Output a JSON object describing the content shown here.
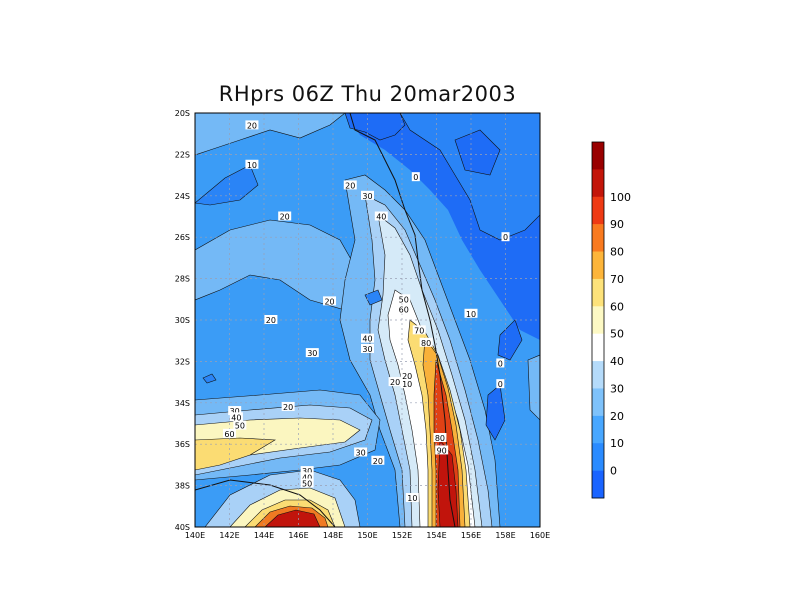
{
  "title": "RHprs 06Z Thu 20mar2003",
  "map": {
    "lat_labels": [
      "20S",
      "22S",
      "24S",
      "26S",
      "28S",
      "30S",
      "32S",
      "34S",
      "36S",
      "38S",
      "40S"
    ],
    "lon_labels": [
      "140E",
      "142E",
      "144E",
      "146E",
      "148E",
      "150E",
      "152E",
      "154E",
      "156E",
      "158E",
      "160E"
    ],
    "lat_range": [
      -40,
      -20
    ],
    "lon_range": [
      140,
      160
    ],
    "gridlines": true,
    "contour_labels": [
      {
        "text": "20",
        "lon": 143.3,
        "lat": -20.6
      },
      {
        "text": "10",
        "lon": 143.3,
        "lat": -22.5
      },
      {
        "text": "0",
        "lon": 152.8,
        "lat": -23.1
      },
      {
        "text": "20",
        "lon": 149.0,
        "lat": -23.5
      },
      {
        "text": "30",
        "lon": 150.0,
        "lat": -24.0
      },
      {
        "text": "40",
        "lon": 150.8,
        "lat": -25.0
      },
      {
        "text": "20",
        "lon": 145.2,
        "lat": -25.0
      },
      {
        "text": "0",
        "lon": 158.0,
        "lat": -26.0
      },
      {
        "text": "20",
        "lon": 147.8,
        "lat": -29.1
      },
      {
        "text": "50",
        "lon": 152.1,
        "lat": -29.0
      },
      {
        "text": "60",
        "lon": 152.1,
        "lat": -29.5
      },
      {
        "text": "10",
        "lon": 156.0,
        "lat": -29.7
      },
      {
        "text": "20",
        "lon": 144.4,
        "lat": -30.0
      },
      {
        "text": "70",
        "lon": 153.0,
        "lat": -30.5
      },
      {
        "text": "80",
        "lon": 153.4,
        "lat": -31.1
      },
      {
        "text": "40",
        "lon": 150.0,
        "lat": -30.9
      },
      {
        "text": "30",
        "lon": 150.0,
        "lat": -31.4
      },
      {
        "text": "30",
        "lon": 146.8,
        "lat": -31.6
      },
      {
        "text": "0",
        "lon": 157.7,
        "lat": -32.1
      },
      {
        "text": "20",
        "lon": 152.3,
        "lat": -32.7
      },
      {
        "text": "10",
        "lon": 152.3,
        "lat": -33.1
      },
      {
        "text": "20",
        "lon": 151.6,
        "lat": -33.0
      },
      {
        "text": "0",
        "lon": 157.7,
        "lat": -33.1
      },
      {
        "text": "20",
        "lon": 145.4,
        "lat": -34.2
      },
      {
        "text": "30",
        "lon": 142.3,
        "lat": -34.4
      },
      {
        "text": "40",
        "lon": 142.4,
        "lat": -34.7
      },
      {
        "text": "50",
        "lon": 142.6,
        "lat": -35.1
      },
      {
        "text": "60",
        "lon": 142.0,
        "lat": -35.5
      },
      {
        "text": "80",
        "lon": 154.2,
        "lat": -35.7
      },
      {
        "text": "90",
        "lon": 154.3,
        "lat": -36.3
      },
      {
        "text": "30",
        "lon": 149.6,
        "lat": -36.4
      },
      {
        "text": "20",
        "lon": 150.6,
        "lat": -36.8
      },
      {
        "text": "30",
        "lon": 146.5,
        "lat": -37.3
      },
      {
        "text": "40",
        "lon": 146.5,
        "lat": -37.6
      },
      {
        "text": "50",
        "lon": 146.5,
        "lat": -37.9
      },
      {
        "text": "10",
        "lon": 152.6,
        "lat": -38.6
      }
    ]
  },
  "colorbar": {
    "labels": [
      "0",
      "10",
      "20",
      "30",
      "40",
      "50",
      "60",
      "70",
      "80",
      "90",
      "100"
    ],
    "colors": [
      "#1a64ff",
      "#2a8bff",
      "#48a7ff",
      "#7ec2fb",
      "#b5dbfa",
      "#ffffff",
      "#fdf9c4",
      "#fde27a",
      "#fdb53a",
      "#f97a1f",
      "#ee3a14",
      "#c3150a",
      "#990000"
    ]
  },
  "palette": {
    "c_lt0": "#1e6cf6",
    "c0": "#2a84f6",
    "c10": "#3b9cf6",
    "c20": "#74b9f6",
    "c30": "#a9d1f7",
    "c40": "#d5eaf8",
    "c50": "#ffffff",
    "c60": "#fbf6c0",
    "c70": "#fbdc73",
    "c80": "#f9b13a",
    "c90": "#f07a22",
    "c100": "#e04115",
    "c110": "#c1140c"
  }
}
